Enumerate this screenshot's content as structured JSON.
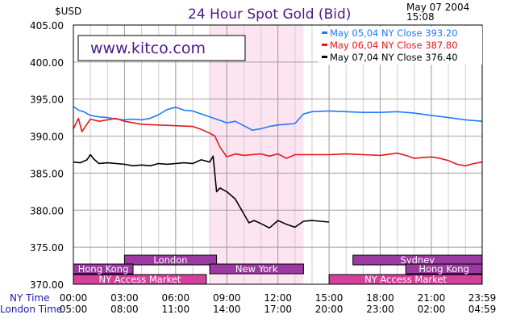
{
  "chart_data": {
    "type": "line",
    "title": "24 Hour Spot Gold (Bid)",
    "ylabel": "$USD",
    "timestamp_date": "May 07 2004",
    "timestamp_time": "15:08",
    "watermark": "www.kitco.com",
    "ylim": [
      370,
      405
    ],
    "y_ticks": [
      "405.00",
      "400.00",
      "395.00",
      "390.00",
      "385.00",
      "380.00",
      "375.00",
      "370.00"
    ],
    "x_row1_label": "NY Time",
    "x_row2_label": "London Time",
    "x_ticks_ny": [
      "00:00",
      "03:00",
      "06:00",
      "09:00",
      "12:00",
      "15:00",
      "18:00",
      "21:00",
      "23:59"
    ],
    "x_ticks_london": [
      "05:00",
      "08:00",
      "11:00",
      "14:00",
      "17:00",
      "20:00",
      "23:00",
      "02:00",
      "04:59"
    ],
    "x_hours": [
      0,
      3,
      6,
      9,
      12,
      15,
      18,
      21,
      23.983
    ],
    "highlight_range_hours": [
      8.0,
      13.5
    ],
    "grid": true,
    "legend_position": "top-right",
    "colors": {
      "blue": "#1e7bff",
      "red": "#e8181a",
      "black": "#000000",
      "highlight": "#fde4f1",
      "bar_purple": "#9b3aa0",
      "bar_magenta": "#d63f9c"
    },
    "series": [
      {
        "name": "May 05,04 NY Close 393.20",
        "color": "#1e7bff",
        "x": [
          0,
          0.3,
          0.6,
          1,
          1.5,
          2,
          2.5,
          3,
          3.5,
          4,
          4.5,
          5,
          5.5,
          6,
          6.5,
          7,
          7.5,
          8,
          8.5,
          9,
          9.5,
          10,
          10.5,
          11,
          11.5,
          12,
          12.5,
          13,
          13.5,
          14,
          15,
          16,
          17,
          18,
          19,
          20,
          21,
          22,
          23,
          23.98
        ],
        "y": [
          394.0,
          393.5,
          393.3,
          392.8,
          392.6,
          392.5,
          392.3,
          392.2,
          392.3,
          392.2,
          392.4,
          392.9,
          393.6,
          393.9,
          393.5,
          393.4,
          393.0,
          392.6,
          392.2,
          391.8,
          392.0,
          391.4,
          390.8,
          391.0,
          391.3,
          391.5,
          391.6,
          391.7,
          393.0,
          393.3,
          393.4,
          393.3,
          393.2,
          393.2,
          393.3,
          393.1,
          392.8,
          392.5,
          392.2,
          392.0
        ]
      },
      {
        "name": "May 06,04 NY Close 387.80",
        "color": "#e8181a",
        "x": [
          0,
          0.3,
          0.5,
          1,
          1.5,
          2,
          2.5,
          3,
          4,
          5,
          6,
          7,
          7.5,
          8,
          8.3,
          8.6,
          9,
          9.5,
          10,
          10.5,
          11,
          11.5,
          12,
          12.5,
          13,
          14,
          15,
          16,
          17,
          18,
          19,
          19.5,
          20,
          21,
          21.5,
          22,
          22.5,
          23,
          23.5,
          23.98
        ],
        "y": [
          391.0,
          392.4,
          390.6,
          392.3,
          392.0,
          392.2,
          392.4,
          392.0,
          391.6,
          391.5,
          391.4,
          391.3,
          390.9,
          390.4,
          390.0,
          388.5,
          387.2,
          387.6,
          387.4,
          387.5,
          387.6,
          387.3,
          387.6,
          387.0,
          387.5,
          387.5,
          387.5,
          387.6,
          387.5,
          387.4,
          387.7,
          387.4,
          387.0,
          387.2,
          387.0,
          386.7,
          386.2,
          386.0,
          386.3,
          386.5
        ]
      },
      {
        "name": "May 07,04 NY Close 376.40",
        "color": "#000000",
        "x": [
          0,
          0.4,
          0.8,
          1,
          1.2,
          1.5,
          2,
          2.5,
          3,
          3.5,
          4,
          4.5,
          5,
          5.5,
          6,
          6.5,
          7,
          7.5,
          8,
          8.2,
          8.4,
          8.6,
          9,
          9.5,
          10,
          10.3,
          10.6,
          11,
          11.5,
          12,
          12.5,
          13,
          13.5,
          14,
          14.5,
          15.0
        ],
        "y": [
          386.5,
          386.4,
          386.8,
          387.5,
          386.9,
          386.3,
          386.4,
          386.3,
          386.2,
          386.0,
          386.1,
          386.0,
          386.3,
          386.2,
          386.3,
          386.4,
          386.3,
          386.8,
          386.5,
          387.3,
          382.5,
          383.0,
          382.5,
          381.5,
          379.5,
          378.3,
          378.6,
          378.2,
          377.6,
          378.6,
          378.1,
          377.7,
          378.5,
          378.6,
          378.5,
          378.4
        ]
      }
    ],
    "sessions": [
      {
        "label": "London",
        "start": 3.0,
        "end": 8.4,
        "row": 0,
        "color": "#9b3aa0"
      },
      {
        "label": "Sydney",
        "start": 16.4,
        "end": 23.98,
        "row": 0,
        "color": "#9b3aa0"
      },
      {
        "label": "Hong Kong",
        "start": 0,
        "end": 3.5,
        "row": 1,
        "color": "#9b3aa0"
      },
      {
        "label": "New York",
        "start": 8.0,
        "end": 13.5,
        "row": 1,
        "color": "#9b3aa0"
      },
      {
        "label": "Hong Kong",
        "start": 19.5,
        "end": 23.98,
        "row": 1,
        "color": "#9b3aa0"
      },
      {
        "label": "NY Access Market",
        "start": 0,
        "end": 7.8,
        "row": 2,
        "color": "#d63f9c"
      },
      {
        "label": "NY Access Market",
        "start": 15.0,
        "end": 23.98,
        "row": 2,
        "color": "#d63f9c"
      }
    ]
  }
}
